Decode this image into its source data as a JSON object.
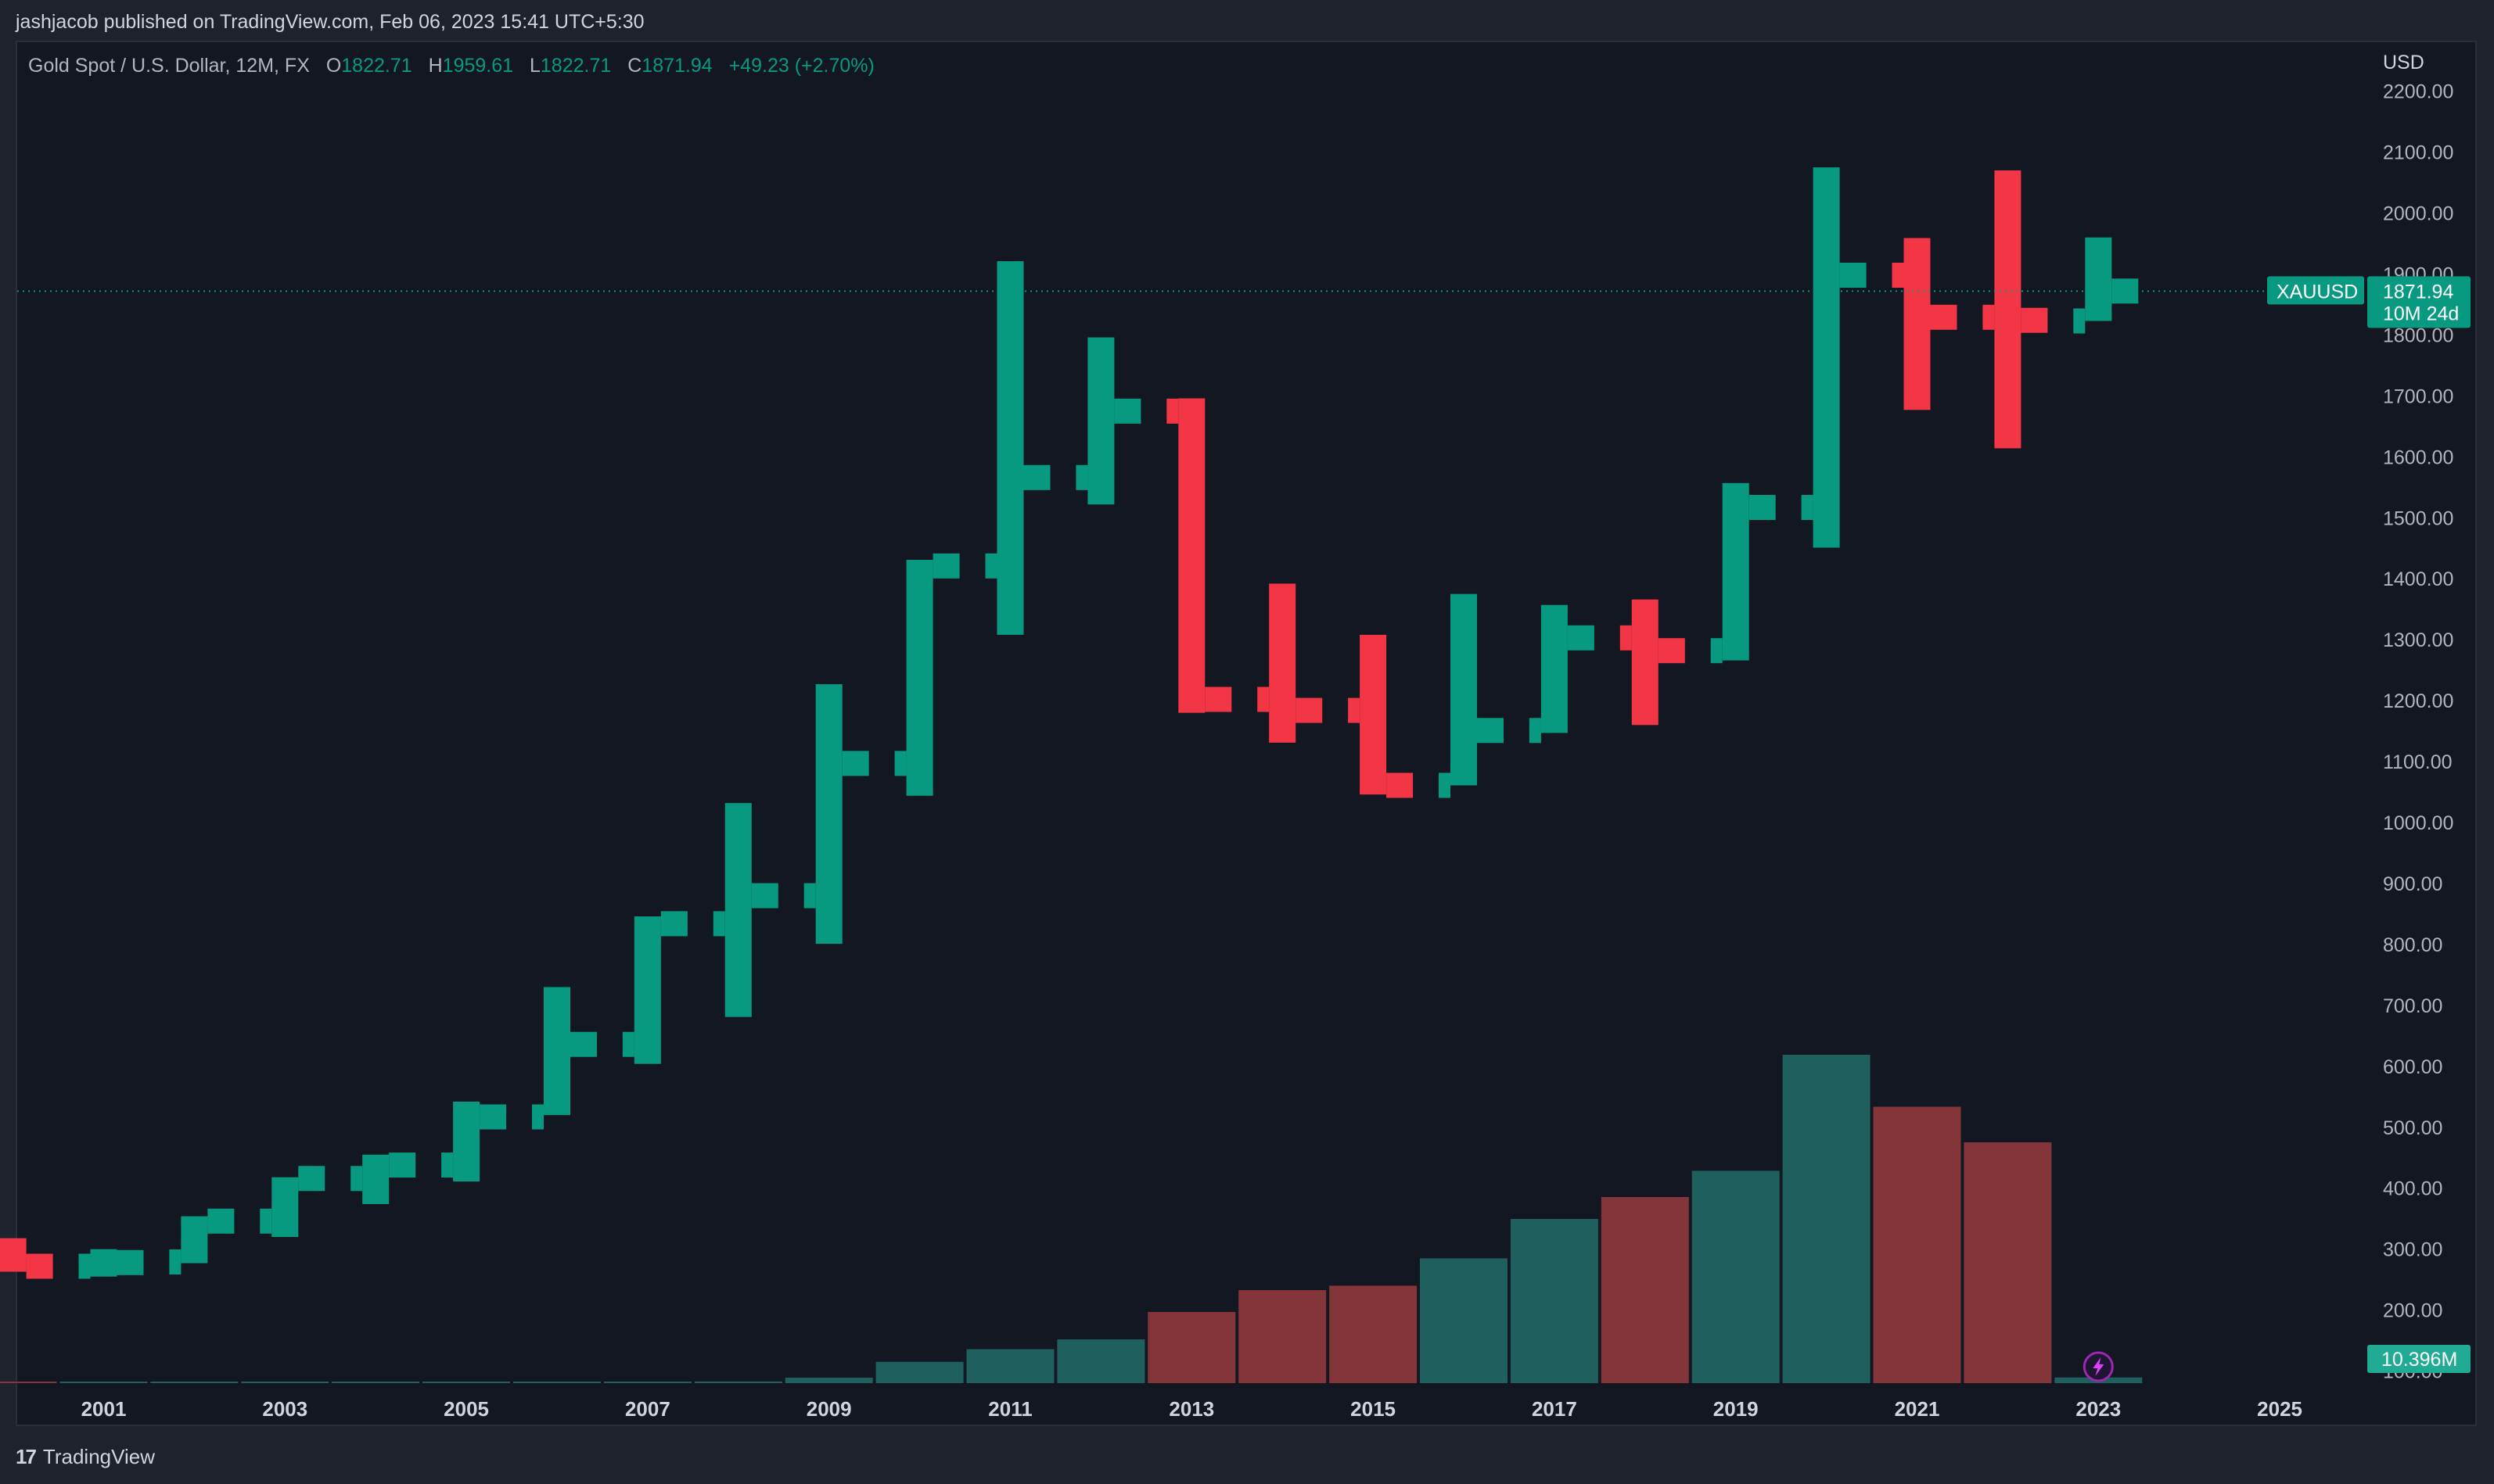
{
  "header": {
    "publish_line": "jashjacob published on TradingView.com, Feb 06, 2023 15:41 UTC+5:30"
  },
  "legend": {
    "symbol_desc": "Gold Spot / U.S. Dollar, 12M, FX",
    "open_label": "O",
    "open": "1822.71",
    "high_label": "H",
    "high": "1959.61",
    "low_label": "L",
    "low": "1822.71",
    "close_label": "C",
    "close": "1871.94",
    "change": "+49.23 (+2.70%)"
  },
  "price_scale": {
    "currency": "USD",
    "ticks": [
      "2200.00",
      "2100.00",
      "2000.00",
      "1900.00",
      "1800.00",
      "1700.00",
      "1600.00",
      "1500.00",
      "1400.00",
      "1300.00",
      "1200.00",
      "1100.00",
      "1000.00",
      "900.00",
      "800.00",
      "700.00",
      "600.00",
      "500.00",
      "400.00",
      "300.00",
      "200.00",
      "100.00"
    ],
    "last_price_symbol": "XAUUSD",
    "last_price": "1871.94",
    "countdown": "10M 24d",
    "volume_label": "10.396M"
  },
  "time_scale": {
    "ticks": [
      "2001",
      "2003",
      "2005",
      "2007",
      "2009",
      "2011",
      "2013",
      "2015",
      "2017",
      "2019",
      "2021",
      "2023",
      "2025"
    ]
  },
  "footer": {
    "brand": "TradingView"
  },
  "colors": {
    "up": "#089981",
    "down": "#f23645",
    "vol_up": "#1f5f5e",
    "vol_down": "#833539",
    "background": "#131722"
  },
  "chart_data": {
    "type": "bar",
    "title": "Gold Spot / U.S. Dollar, 12M, FX",
    "ylabel": "USD",
    "ylim": [
      100,
      2250
    ],
    "grid": false,
    "series": [
      {
        "name": "XAUUSD",
        "ohlc": [
          {
            "year": 2000,
            "open": 290,
            "high": 318,
            "low": 263,
            "close": 272
          },
          {
            "year": 2001,
            "open": 272,
            "high": 300,
            "low": 255,
            "close": 278
          },
          {
            "year": 2002,
            "open": 279,
            "high": 354,
            "low": 277,
            "close": 346
          },
          {
            "year": 2003,
            "open": 346,
            "high": 418,
            "low": 320,
            "close": 416
          },
          {
            "year": 2004,
            "open": 416,
            "high": 455,
            "low": 374,
            "close": 438
          },
          {
            "year": 2005,
            "open": 438,
            "high": 542,
            "low": 411,
            "close": 517
          },
          {
            "year": 2006,
            "open": 517,
            "high": 730,
            "low": 520,
            "close": 636
          },
          {
            "year": 2007,
            "open": 636,
            "high": 846,
            "low": 604,
            "close": 834
          },
          {
            "year": 2008,
            "open": 834,
            "high": 1032,
            "low": 681,
            "close": 880
          },
          {
            "year": 2009,
            "open": 880,
            "high": 1227,
            "low": 801,
            "close": 1097
          },
          {
            "year": 2010,
            "open": 1097,
            "high": 1431,
            "low": 1044,
            "close": 1421
          },
          {
            "year": 2011,
            "open": 1421,
            "high": 1921,
            "low": 1308,
            "close": 1566
          },
          {
            "year": 2012,
            "open": 1566,
            "high": 1796,
            "low": 1522,
            "close": 1675
          },
          {
            "year": 2013,
            "open": 1675,
            "high": 1696,
            "low": 1180,
            "close": 1202
          },
          {
            "year": 2014,
            "open": 1202,
            "high": 1392,
            "low": 1131,
            "close": 1184
          },
          {
            "year": 2015,
            "open": 1184,
            "high": 1308,
            "low": 1046,
            "close": 1061
          },
          {
            "year": 2016,
            "open": 1061,
            "high": 1375,
            "low": 1061,
            "close": 1151
          },
          {
            "year": 2017,
            "open": 1151,
            "high": 1357,
            "low": 1147,
            "close": 1303
          },
          {
            "year": 2018,
            "open": 1303,
            "high": 1366,
            "low": 1160,
            "close": 1282
          },
          {
            "year": 2019,
            "open": 1282,
            "high": 1557,
            "low": 1266,
            "close": 1517
          },
          {
            "year": 2020,
            "open": 1517,
            "high": 2075,
            "low": 1451,
            "close": 1898
          },
          {
            "year": 2021,
            "open": 1898,
            "high": 1959,
            "low": 1677,
            "close": 1829
          },
          {
            "year": 2022,
            "open": 1829,
            "high": 2070,
            "low": 1614,
            "close": 1824
          },
          {
            "year": 2023,
            "open": 1823,
            "high": 1960,
            "low": 1823,
            "close": 1872
          }
        ]
      },
      {
        "name": "Volume",
        "values_millions": [
          2,
          2,
          2,
          2,
          2,
          2,
          2,
          2,
          3,
          10,
          39,
          62,
          80,
          130,
          170,
          178,
          228,
          300,
          340,
          388,
          600,
          505,
          440,
          10.396
        ]
      }
    ]
  }
}
